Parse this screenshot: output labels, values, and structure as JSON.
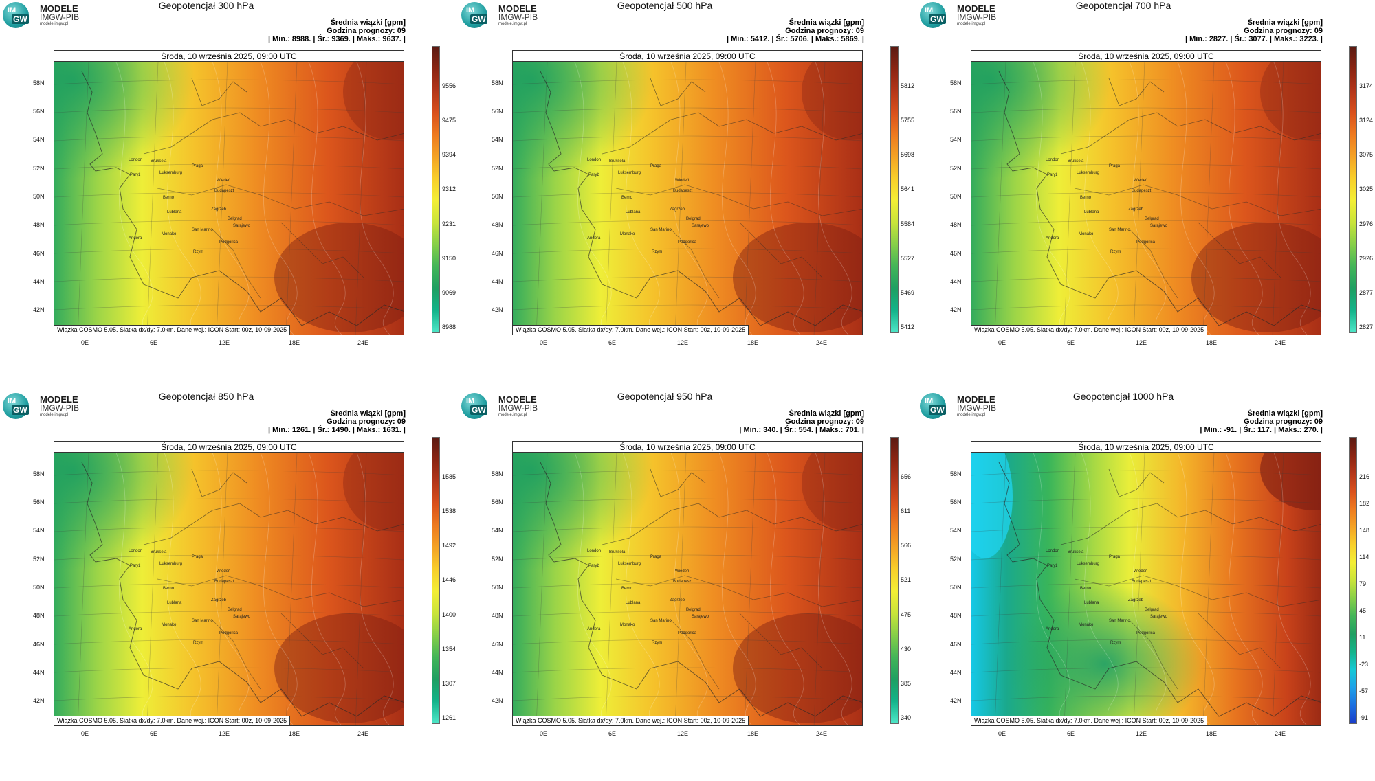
{
  "brand": {
    "line1": "MODELE",
    "line2": "IMGW-PIB",
    "line3": "modele.imgw.pl",
    "logo_top": "IM",
    "logo_bottom": "GW"
  },
  "common": {
    "date": "Środa, 10 września 2025, 09:00 UTC",
    "info_line1": "Średnia wiązki [gpm]",
    "info_line2": "Godzina prognozy: 09",
    "footer": "Wiązka  COSMO 5.05. Siatka dx/dy: 7.0km. Dane wej.: ICON Start: 00z, 10-09-2025",
    "lat_labels": [
      "58N",
      "56N",
      "54N",
      "52N",
      "50N",
      "48N",
      "46N",
      "44N",
      "42N"
    ],
    "lon_labels": [
      "0E",
      "6E",
      "12E",
      "18E",
      "24E"
    ],
    "cities": [
      "London",
      "Bruksela",
      "Paryż",
      "Luksemburg",
      "Praga",
      "Wiedeń",
      "Budapeszt",
      "Berno",
      "Lublana",
      "Zagrzeb",
      "Belgrad",
      "Sarajewo",
      "Monako",
      "San Marino",
      "Andora",
      "Podgorica",
      "Rzym"
    ]
  },
  "panels": [
    {
      "title": "Geopotencjał 300 hPa",
      "stats": "| Min.:    8988. | Śr.:    9369. | Maks.:    9637. |",
      "scale": [
        "9556",
        "9475",
        "9394",
        "9312",
        "9231",
        "9150",
        "9069",
        "8988"
      ],
      "style": "warm"
    },
    {
      "title": "Geopotencjał 500 hPa",
      "stats": "| Min.:    5412. | Śr.:    5706. | Maks.:    5869. |",
      "scale": [
        "5812",
        "5755",
        "5698",
        "5641",
        "5584",
        "5527",
        "5469",
        "5412"
      ],
      "style": "warm"
    },
    {
      "title": "Geopotencjał 700 hPa",
      "stats": "| Min.:    2827. | Śr.:    3077. | Maks.:    3223. |",
      "scale": [
        "3174",
        "3124",
        "3075",
        "3025",
        "2976",
        "2926",
        "2877",
        "2827"
      ],
      "style": "warm"
    },
    {
      "title": "Geopotencjał 850 hPa",
      "stats": "| Min.:    1261. | Śr.:    1490. | Maks.:    1631. |",
      "scale": [
        "1585",
        "1538",
        "1492",
        "1446",
        "1400",
        "1354",
        "1307",
        "1261"
      ],
      "style": "warm"
    },
    {
      "title": "Geopotencjał 950 hPa",
      "stats": "| Min.:    340. | Śr.:    554. | Maks.:    701. |",
      "scale": [
        "656",
        "611",
        "566",
        "521",
        "475",
        "430",
        "385",
        "340"
      ],
      "style": "warm"
    },
    {
      "title": "Geopotencjał 1000 hPa",
      "stats": "| Min.:    -91. | Śr.:    117. | Maks.:    270. |",
      "scale": [
        "216",
        "182",
        "148",
        "114",
        "79",
        "45",
        "11",
        "-23",
        "-57",
        "-91"
      ],
      "style": "cold"
    }
  ],
  "colors": {
    "warm_bar": [
      "#5b1a12",
      "#8a2412",
      "#b3361a",
      "#d9501c",
      "#ee7a1f",
      "#f4a325",
      "#f8cf2a",
      "#f3ee35",
      "#c9e43a",
      "#86cf48",
      "#43b558",
      "#1f9f62",
      "#13b38a",
      "#4fe6c8"
    ],
    "cold_bar": [
      "#5b1a12",
      "#8a2412",
      "#b3361a",
      "#d9501c",
      "#ee7a1f",
      "#f4a325",
      "#f8cf2a",
      "#f3ee35",
      "#c9e43a",
      "#86cf48",
      "#43b558",
      "#1f9f62",
      "#13b38a",
      "#14c9d6",
      "#1ea0e8",
      "#1c6fe0",
      "#1a3dc9"
    ]
  }
}
